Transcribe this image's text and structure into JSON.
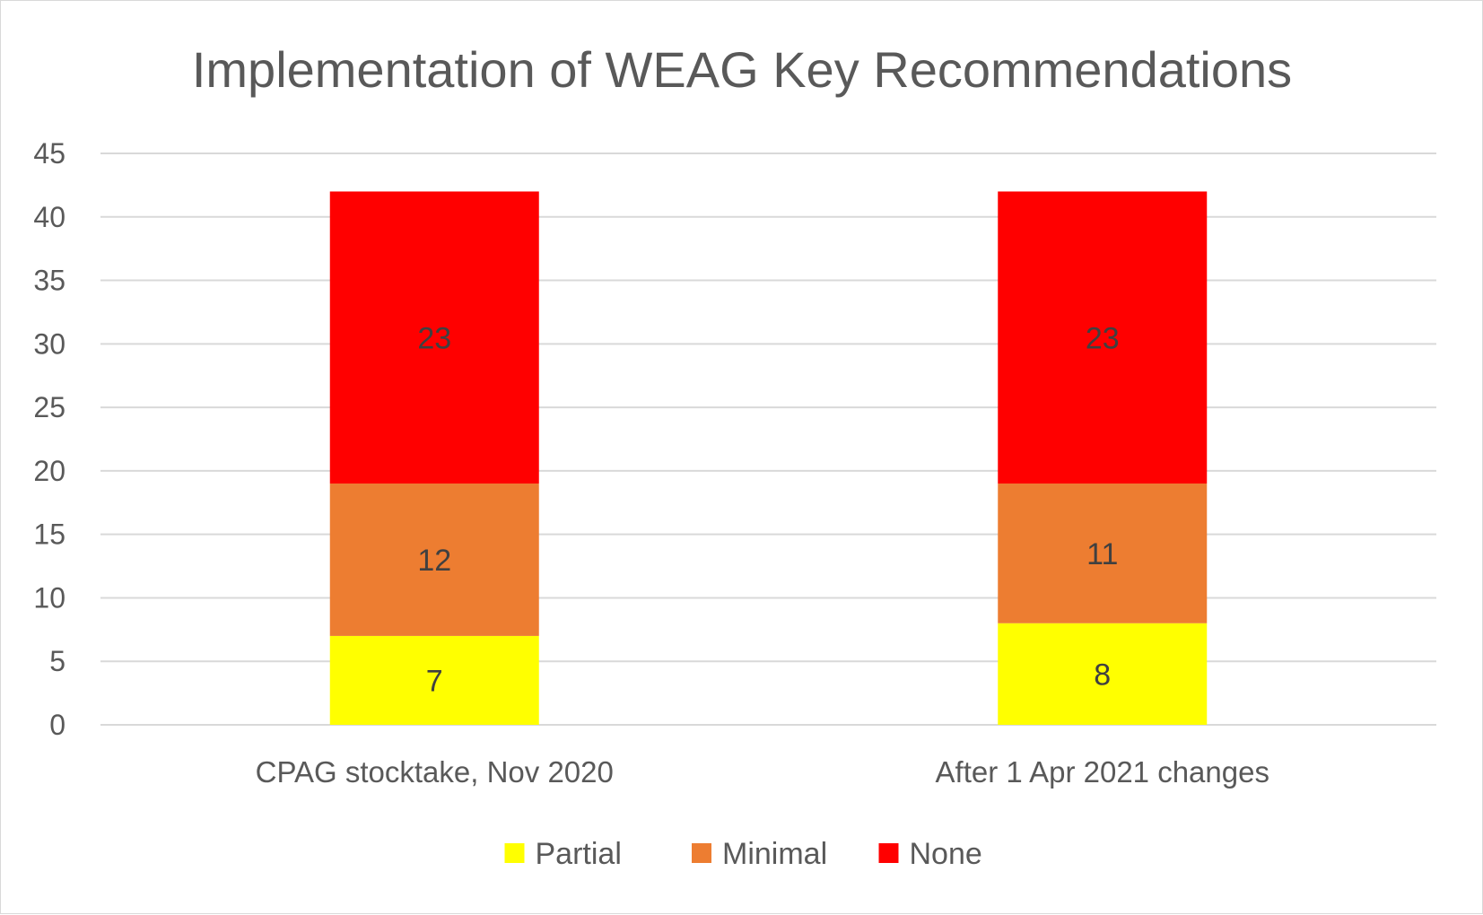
{
  "chart_data": {
    "type": "bar",
    "stacked": true,
    "title": "Implementation of WEAG Key Recommendations",
    "xlabel": "",
    "ylabel": "",
    "ylim": [
      0,
      45
    ],
    "yticks": [
      0,
      5,
      10,
      15,
      20,
      25,
      30,
      35,
      40,
      45
    ],
    "grid": true,
    "legend_position": "bottom",
    "categories": [
      "CPAG stocktake, Nov 2020",
      "After 1 Apr 2021 changes"
    ],
    "series": [
      {
        "name": "Partial",
        "color": "#ffff00",
        "values": [
          7,
          8
        ]
      },
      {
        "name": "Minimal",
        "color": "#ed7d31",
        "values": [
          12,
          11
        ]
      },
      {
        "name": "None",
        "color": "#ff0000",
        "values": [
          23,
          23
        ]
      }
    ]
  }
}
